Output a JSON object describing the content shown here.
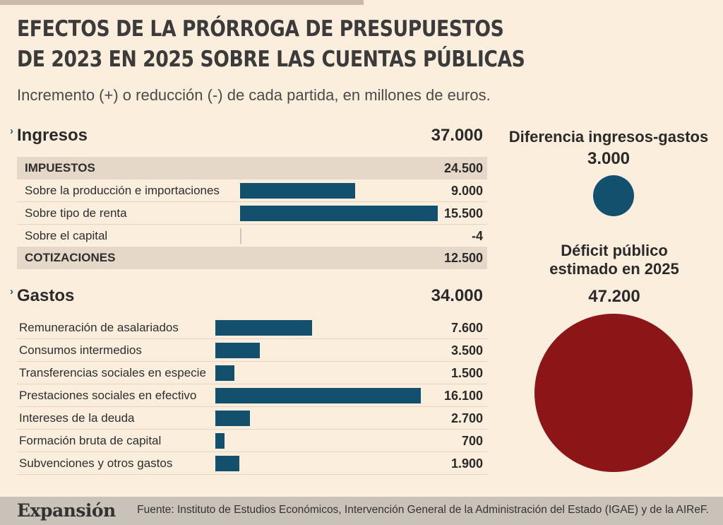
{
  "title_line1": "EFECTOS DE LA PRÓRROGA DE PRESUPUESTOS",
  "title_line2": "DE 2023 EN 2025 SOBRE LAS CUENTAS PÚBLICAS",
  "subtitle": "Incremento (+) o reducción (-) de cada partida, en millones de euros.",
  "chart_data": [
    {
      "type": "bar",
      "title": "Ingresos",
      "total": "37.000",
      "groups": [
        {
          "name": "IMPUESTOS",
          "total": "24.500",
          "categories": [
            "Sobre la producción e importaciones",
            "Sobre tipo de renta",
            "Sobre el capital"
          ],
          "values": [
            9000,
            15500,
            -4
          ],
          "value_labels": [
            "9.000",
            "15.500",
            "-4"
          ]
        },
        {
          "name": "COTIZACIONES",
          "total": "12.500",
          "categories": [],
          "values": [],
          "value_labels": []
        }
      ]
    },
    {
      "type": "bar",
      "title": "Gastos",
      "total": "34.000",
      "categories": [
        "Remuneración de asalariados",
        "Consumos intermedios",
        "Transferencias sociales en especie",
        "Prestaciones sociales en efectivo",
        "Intereses de la deuda",
        "Formación bruta de capital",
        "Subvenciones y otros gastos"
      ],
      "values": [
        7600,
        3500,
        1500,
        16100,
        2700,
        700,
        1900
      ],
      "value_labels": [
        "7.600",
        "3.500",
        "1.500",
        "16.100",
        "2.700",
        "700",
        "1.900"
      ]
    },
    {
      "type": "bubble",
      "items": [
        {
          "title": "Diferencia ingresos-gastos",
          "value": 3000,
          "value_label": "3.000",
          "color": "#13506e"
        },
        {
          "title_line1": "Déficit público",
          "title_line2": "estimado en 2025",
          "value": 47200,
          "value_label": "47.200",
          "color": "#8c1517"
        }
      ]
    }
  ],
  "footer": {
    "logo": "Expansión",
    "source": "Fuente:  Instituto de Estudios Económicos, Intervención General de la Administración del Estado (IGAE) y de la AIReF."
  }
}
